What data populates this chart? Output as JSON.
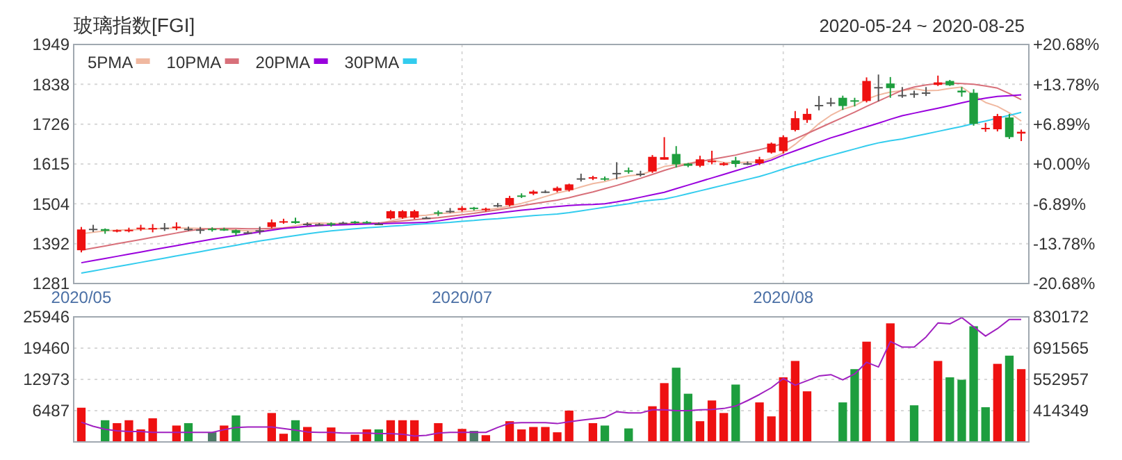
{
  "chart_data": [
    {
      "type": "candlestick",
      "title": "玻璃指数[FGI]",
      "subtitle": "2020-05-24 ~ 2020-08-25",
      "categories": [
        "2020/05",
        null,
        null,
        null,
        null,
        null,
        null,
        null,
        null,
        null,
        null,
        null,
        null,
        null,
        null,
        null,
        null,
        null,
        null,
        null,
        null,
        null,
        null,
        null,
        null,
        null,
        null,
        null,
        null,
        null,
        null,
        null,
        "2020/07",
        null,
        null,
        null,
        null,
        null,
        null,
        null,
        null,
        null,
        null,
        null,
        null,
        null,
        null,
        null,
        null,
        null,
        null,
        null,
        null,
        null,
        null,
        null,
        null,
        null,
        null,
        "2020/08",
        null,
        null,
        null,
        null,
        null,
        null,
        null,
        null,
        null,
        null,
        null,
        null,
        null,
        null,
        null,
        null,
        null,
        null,
        null,
        null
      ],
      "ohlc": [
        [
          1374,
          1439,
          1368,
          1432
        ],
        [
          1434,
          1445,
          1425,
          1434
        ],
        [
          1433,
          1435,
          1420,
          1428
        ],
        [
          1427,
          1432,
          1424,
          1430
        ],
        [
          1428,
          1437,
          1424,
          1431
        ],
        [
          1433,
          1445,
          1428,
          1437
        ],
        [
          1432,
          1447,
          1424,
          1436
        ],
        [
          1437,
          1450,
          1428,
          1437
        ],
        [
          1437,
          1452,
          1430,
          1440
        ],
        [
          1434,
          1440,
          1428,
          1434
        ],
        [
          1432,
          1439,
          1420,
          1432
        ],
        [
          1434,
          1438,
          1426,
          1431
        ],
        [
          1433,
          1437,
          1428,
          1431
        ],
        [
          1430,
          1432,
          1415,
          1422
        ],
        [
          1424,
          1428,
          1420,
          1424
        ],
        [
          1430,
          1440,
          1418,
          1430
        ],
        [
          1439,
          1460,
          1435,
          1452
        ],
        [
          1452,
          1462,
          1448,
          1455
        ],
        [
          1455,
          1465,
          1448,
          1450
        ],
        [
          1448,
          1452,
          1442,
          1448
        ],
        [
          1447,
          1450,
          1443,
          1447
        ],
        [
          1449,
          1452,
          1440,
          1446
        ],
        [
          1451,
          1454,
          1448,
          1451
        ],
        [
          1454,
          1456,
          1448,
          1451
        ],
        [
          1453,
          1456,
          1448,
          1451
        ],
        [
          1448,
          1452,
          1445,
          1448
        ],
        [
          1463,
          1486,
          1460,
          1483
        ],
        [
          1465,
          1486,
          1462,
          1483
        ],
        [
          1465,
          1487,
          1461,
          1483
        ],
        [
          1465,
          1468,
          1462,
          1465
        ],
        [
          1480,
          1485,
          1470,
          1477
        ],
        [
          1484,
          1492,
          1478,
          1484
        ],
        [
          1486,
          1497,
          1482,
          1492
        ],
        [
          1493,
          1495,
          1485,
          1490
        ],
        [
          1487,
          1493,
          1482,
          1490
        ],
        [
          1500,
          1506,
          1494,
          1500
        ],
        [
          1500,
          1526,
          1496,
          1520
        ],
        [
          1527,
          1533,
          1520,
          1524
        ],
        [
          1532,
          1542,
          1528,
          1538
        ],
        [
          1538,
          1542,
          1534,
          1538
        ],
        [
          1540,
          1552,
          1536,
          1548
        ],
        [
          1542,
          1560,
          1538,
          1558
        ],
        [
          1575,
          1588,
          1566,
          1575
        ],
        [
          1574,
          1582,
          1570,
          1578
        ],
        [
          1575,
          1580,
          1568,
          1573
        ],
        [
          1590,
          1620,
          1572,
          1590
        ],
        [
          1597,
          1605,
          1588,
          1594
        ],
        [
          1588,
          1596,
          1580,
          1588
        ],
        [
          1594,
          1640,
          1590,
          1635
        ],
        [
          1627,
          1690,
          1627,
          1634
        ],
        [
          1643,
          1665,
          1605,
          1614
        ],
        [
          1616,
          1618,
          1606,
          1610
        ],
        [
          1610,
          1638,
          1606,
          1628
        ],
        [
          1620,
          1652,
          1614,
          1624
        ],
        [
          1612,
          1620,
          1610,
          1617
        ],
        [
          1625,
          1635,
          1606,
          1615
        ],
        [
          1617,
          1622,
          1612,
          1617
        ],
        [
          1617,
          1635,
          1612,
          1628
        ],
        [
          1647,
          1675,
          1644,
          1672
        ],
        [
          1651,
          1695,
          1644,
          1690
        ],
        [
          1710,
          1763,
          1706,
          1743
        ],
        [
          1738,
          1770,
          1730,
          1755
        ],
        [
          1780,
          1805,
          1765,
          1780
        ],
        [
          1787,
          1800,
          1776,
          1787
        ],
        [
          1800,
          1806,
          1766,
          1777
        ],
        [
          1793,
          1800,
          1776,
          1790
        ],
        [
          1791,
          1857,
          1787,
          1847
        ],
        [
          1830,
          1865,
          1790,
          1830
        ],
        [
          1840,
          1858,
          1800,
          1827
        ],
        [
          1808,
          1830,
          1800,
          1808
        ],
        [
          1812,
          1820,
          1800,
          1812
        ],
        [
          1815,
          1830,
          1805,
          1815
        ],
        [
          1836,
          1862,
          1833,
          1843
        ],
        [
          1847,
          1850,
          1833,
          1835
        ],
        [
          1820,
          1830,
          1803,
          1815
        ],
        [
          1814,
          1824,
          1722,
          1727
        ],
        [
          1713,
          1730,
          1705,
          1716
        ],
        [
          1712,
          1755,
          1706,
          1749
        ],
        [
          1745,
          1755,
          1685,
          1690
        ],
        [
          1700,
          1711,
          1679,
          1705
        ]
      ],
      "colors": [
        "#ee1111",
        "#555555",
        "#1e9e3e",
        "#ee1111",
        "#ee1111",
        "#ee1111",
        "#ee1111",
        "#555555",
        "#ee1111",
        "#555555",
        "#555555",
        "#1e9e3e",
        "#1e9e3e",
        "#1e9e3e",
        "#555555",
        "#555555",
        "#ee1111",
        "#ee1111",
        "#1e9e3e",
        "#555555",
        "#555555",
        "#1e9e3e",
        "#555555",
        "#1e9e3e",
        "#1e9e3e",
        "#555555",
        "#ee1111",
        "#ee1111",
        "#ee1111",
        "#555555",
        "#1e9e3e",
        "#555555",
        "#ee1111",
        "#1e9e3e",
        "#ee1111",
        "#555555",
        "#ee1111",
        "#1e9e3e",
        "#ee1111",
        "#555555",
        "#ee1111",
        "#ee1111",
        "#555555",
        "#ee1111",
        "#1e9e3e",
        "#555555",
        "#1e9e3e",
        "#555555",
        "#ee1111",
        "#ee1111",
        "#1e9e3e",
        "#1e9e3e",
        "#ee1111",
        "#ee1111",
        "#ee1111",
        "#1e9e3e",
        "#555555",
        "#ee1111",
        "#ee1111",
        "#ee1111",
        "#ee1111",
        "#ee1111",
        "#555555",
        "#555555",
        "#1e9e3e",
        "#1e9e3e",
        "#ee1111",
        "#555555",
        "#1e9e3e",
        "#555555",
        "#555555",
        "#555555",
        "#ee1111",
        "#1e9e3e",
        "#1e9e3e",
        "#1e9e3e",
        "#ee1111",
        "#ee1111",
        "#1e9e3e",
        "#ee1111"
      ],
      "series": [
        {
          "name": "5PMA",
          "type": "line",
          "color": "#f0b8a0",
          "values": [
            1420,
            1424,
            1428,
            1430,
            1431,
            1432,
            1434,
            1435,
            1436,
            1436,
            1435,
            1434,
            1433,
            1430,
            1428,
            1427,
            1432,
            1437,
            1442,
            1449,
            1450,
            1449,
            1448,
            1449,
            1449,
            1449,
            1456,
            1463,
            1470,
            1472,
            1476,
            1478,
            1481,
            1484,
            1487,
            1491,
            1498,
            1505,
            1514,
            1524,
            1534,
            1541,
            1551,
            1560,
            1566,
            1575,
            1582,
            1585,
            1596,
            1608,
            1613,
            1616,
            1624,
            1626,
            1619,
            1619,
            1620,
            1621,
            1631,
            1646,
            1670,
            1698,
            1728,
            1751,
            1768,
            1778,
            1796,
            1808,
            1816,
            1820,
            1825,
            1820,
            1821,
            1826,
            1830,
            1807,
            1787,
            1776,
            1758,
            1735
          ]
        },
        {
          "name": "10PMA",
          "type": "line",
          "color": "#d8707a",
          "values": [
            1374,
            1380,
            1386,
            1392,
            1398,
            1404,
            1410,
            1416,
            1422,
            1428,
            1433,
            1434,
            1435,
            1435,
            1434,
            1434,
            1435,
            1436,
            1438,
            1440,
            1443,
            1445,
            1447,
            1449,
            1450,
            1450,
            1453,
            1456,
            1459,
            1462,
            1465,
            1469,
            1473,
            1477,
            1482,
            1487,
            1492,
            1498,
            1504,
            1509,
            1514,
            1521,
            1529,
            1537,
            1546,
            1555,
            1565,
            1575,
            1586,
            1597,
            1607,
            1615,
            1622,
            1628,
            1634,
            1640,
            1648,
            1655,
            1663,
            1672,
            1685,
            1700,
            1715,
            1730,
            1745,
            1760,
            1776,
            1791,
            1806,
            1821,
            1830,
            1836,
            1840,
            1841,
            1840,
            1838,
            1833,
            1827,
            1812,
            1795
          ]
        },
        {
          "name": "20PMA",
          "type": "line",
          "color": "#9900dd",
          "values": [
            1339,
            1345,
            1351,
            1357,
            1363,
            1369,
            1375,
            1381,
            1387,
            1393,
            1399,
            1405,
            1410,
            1415,
            1420,
            1425,
            1430,
            1435,
            1438,
            1441,
            1443,
            1444,
            1445,
            1446,
            1447,
            1448,
            1449,
            1450,
            1451,
            1452,
            1456,
            1461,
            1466,
            1470,
            1474,
            1478,
            1482,
            1486,
            1489,
            1493,
            1496,
            1499,
            1501,
            1502,
            1504,
            1509,
            1515,
            1522,
            1529,
            1536,
            1546,
            1556,
            1566,
            1576,
            1586,
            1596,
            1606,
            1616,
            1626,
            1640,
            1652,
            1664,
            1676,
            1688,
            1698,
            1709,
            1719,
            1729,
            1740,
            1750,
            1757,
            1764,
            1771,
            1778,
            1786,
            1793,
            1799,
            1804,
            1806,
            1808
          ]
        },
        {
          "name": "30PMA",
          "type": "line",
          "color": "#33ccee",
          "values": [
            1310,
            1316,
            1322,
            1328,
            1334,
            1340,
            1346,
            1352,
            1358,
            1364,
            1370,
            1376,
            1382,
            1388,
            1394,
            1400,
            1405,
            1410,
            1415,
            1420,
            1424,
            1428,
            1431,
            1434,
            1437,
            1439,
            1441,
            1443,
            1446,
            1448,
            1450,
            1452,
            1455,
            1457,
            1460,
            1462,
            1465,
            1468,
            1471,
            1473,
            1475,
            1479,
            1484,
            1489,
            1494,
            1499,
            1504,
            1510,
            1514,
            1517,
            1524,
            1532,
            1540,
            1548,
            1556,
            1564,
            1572,
            1580,
            1590,
            1601,
            1611,
            1620,
            1630,
            1639,
            1648,
            1657,
            1666,
            1674,
            1680,
            1685,
            1692,
            1699,
            1706,
            1713,
            1720,
            1728,
            1735,
            1743,
            1751,
            1759
          ]
        }
      ],
      "ylim": [
        1281,
        1949
      ],
      "yticks": [
        1281,
        1392,
        1504,
        1615,
        1726,
        1838,
        1949
      ],
      "y2lim": [
        -20.68,
        20.68
      ],
      "y2ticks": [
        {
          "value": -20.68,
          "label": "-20.68%"
        },
        {
          "value": -13.78,
          "label": "-13.78%"
        },
        {
          "value": -6.89,
          "label": "-6.89%"
        },
        {
          "value": 0,
          "label": "+0.00%"
        },
        {
          "value": 6.89,
          "label": "+6.89%"
        },
        {
          "value": 13.78,
          "label": "+13.78%"
        },
        {
          "value": 20.68,
          "label": "+20.68%"
        }
      ],
      "grid": true,
      "legend": "top left"
    },
    {
      "type": "bar",
      "categories": [
        null,
        null,
        null,
        null,
        null,
        null,
        null,
        null,
        null,
        null,
        null,
        null,
        null,
        null,
        null,
        null,
        null,
        null,
        null,
        null,
        null,
        null,
        null,
        null,
        null,
        null,
        null,
        null,
        null,
        null,
        null,
        null,
        null,
        null,
        null,
        null,
        null,
        null,
        null,
        null,
        null,
        null,
        null,
        null,
        null,
        null,
        null,
        null,
        null,
        null,
        null,
        null,
        null,
        null,
        null,
        null,
        null,
        null,
        null,
        null,
        null,
        null,
        null,
        null,
        null,
        null,
        null,
        null,
        null,
        null,
        null,
        null,
        null,
        null,
        null,
        null,
        null,
        null,
        null,
        null
      ],
      "series": [
        {
          "type": "bar",
          "values": [
            7100,
            null,
            4500,
            3900,
            4500,
            2600,
            4900,
            null,
            3400,
            3900,
            null,
            2000,
            3400,
            5500,
            null,
            null,
            6000,
            1700,
            4500,
            3100,
            null,
            3000,
            null,
            1500,
            2600,
            2600,
            4500,
            4500,
            4500,
            null,
            3900,
            null,
            2700,
            2300,
            1400,
            null,
            4300,
            2600,
            3100,
            3100,
            2000,
            6500,
            null,
            3900,
            3400,
            null,
            2800,
            null,
            7400,
            12200,
            15400,
            10000,
            4300,
            8600,
            6000,
            11900,
            null,
            8200,
            5300,
            13400,
            16800,
            10500,
            null,
            null,
            8200,
            15100,
            20800,
            null,
            24600,
            null,
            7600,
            null,
            16800,
            13400,
            12900,
            24000,
            7200,
            16200,
            17900,
            15100
          ],
          "colors": [
            "#ee1111",
            null,
            "#1e9e3e",
            "#ee1111",
            "#ee1111",
            "#ee1111",
            "#ee1111",
            null,
            "#ee1111",
            "#1e9e3e",
            null,
            "#4a7a66",
            "#ee1111",
            "#1e9e3e",
            null,
            null,
            "#ee1111",
            "#ee1111",
            "#1e9e3e",
            "#ee1111",
            null,
            "#ee1111",
            null,
            "#ee1111",
            "#ee1111",
            "#1e9e3e",
            "#ee1111",
            "#ee1111",
            "#ee1111",
            null,
            "#ee1111",
            null,
            "#ee1111",
            "#4a7a66",
            "#ee1111",
            null,
            "#ee1111",
            "#ee1111",
            "#ee1111",
            "#ee1111",
            "#ee1111",
            "#ee1111",
            null,
            "#ee1111",
            "#1e9e3e",
            null,
            "#1e9e3e",
            null,
            "#ee1111",
            "#ee1111",
            "#1e9e3e",
            "#1e9e3e",
            "#ee1111",
            "#ee1111",
            "#ee1111",
            "#1e9e3e",
            null,
            "#ee1111",
            "#ee1111",
            "#ee1111",
            "#ee1111",
            "#ee1111",
            null,
            null,
            "#1e9e3e",
            "#1e9e3e",
            "#ee1111",
            null,
            "#ee1111",
            null,
            "#1e9e3e",
            null,
            "#ee1111",
            "#1e9e3e",
            "#1e9e3e",
            "#1e9e3e",
            "#1e9e3e",
            "#ee1111",
            "#1e9e3e",
            "#ee1111"
          ]
        },
        {
          "type": "line",
          "axis": "y2",
          "color": "#a020c0",
          "values": [
            363000,
            345000,
            332000,
            325000,
            322000,
            322000,
            318000,
            318000,
            318000,
            318000,
            318000,
            318000,
            330000,
            340000,
            342000,
            342000,
            342000,
            335000,
            328000,
            320000,
            318000,
            318000,
            315000,
            315000,
            315000,
            313000,
            313000,
            310000,
            302000,
            305000,
            315000,
            318000,
            318000,
            318000,
            318000,
            340000,
            359000,
            361000,
            361000,
            361000,
            357000,
            365000,
            372000,
            378000,
            384000,
            410000,
            404000,
            404000,
            418000,
            418000,
            414000,
            414000,
            418000,
            420000,
            424000,
            435000,
            459000,
            486000,
            516000,
            557000,
            527000,
            547000,
            568000,
            574000,
            551000,
            577000,
            629000,
            608000,
            721000,
            696000,
            696000,
            741000,
            803000,
            799000,
            827000,
            786000,
            745000,
            778000,
            819000,
            819000
          ]
        }
      ],
      "ylim": [
        0,
        25946
      ],
      "yticks": [
        6487,
        12973,
        19460,
        25946
      ],
      "y2lim": [
        275741,
        830172
      ],
      "y2ticks": [
        414349,
        552957,
        691565,
        830172
      ],
      "grid": true,
      "tick_labels": "y"
    }
  ]
}
